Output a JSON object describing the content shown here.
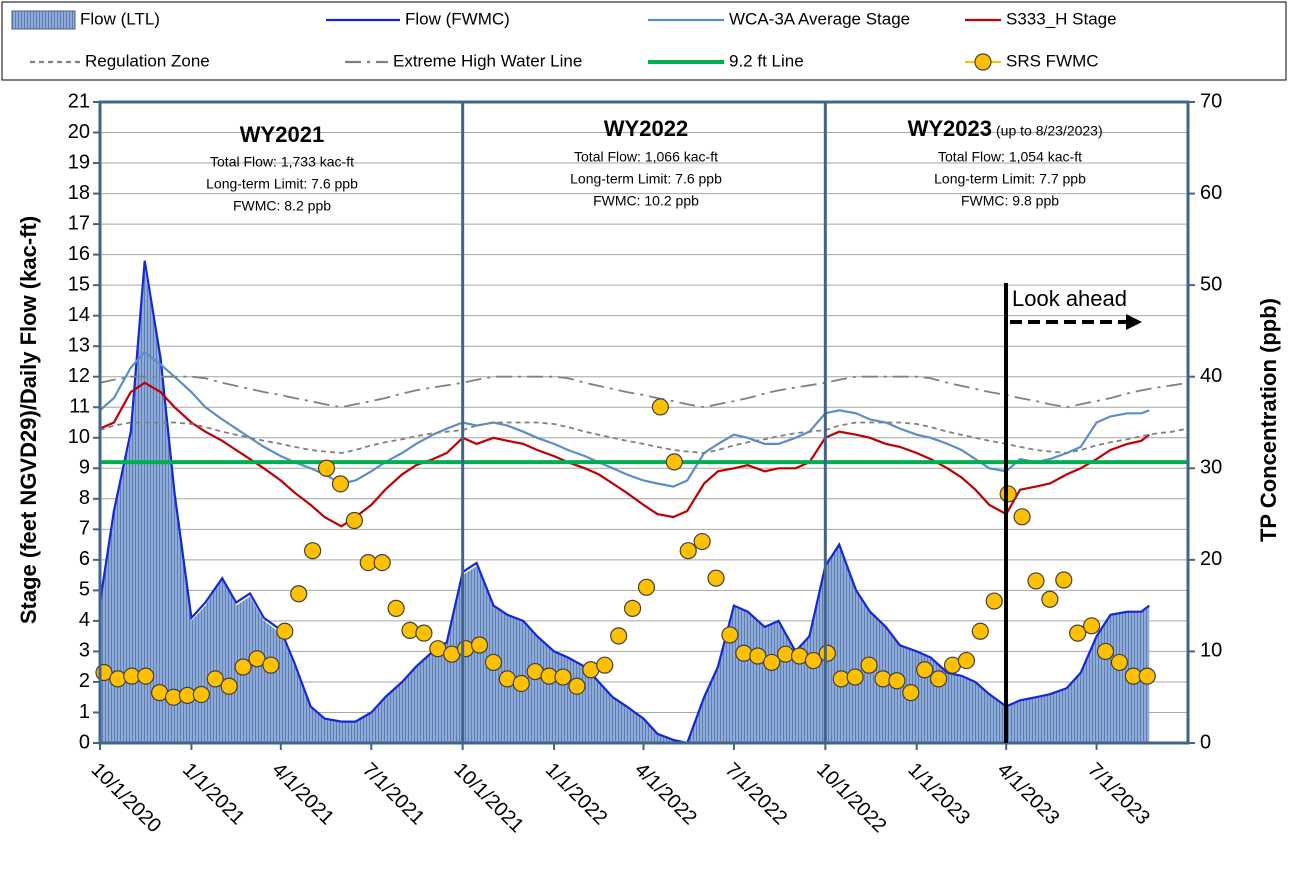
{
  "chart_data": {
    "type": "line",
    "ylabel": "Stage (feet NGVD29)/Daily Flow (kac-ft)",
    "y2label": "TP Concentration (ppb)",
    "xlim": [
      "2020-10-01",
      "2023-10-01"
    ],
    "xticks": [
      {
        "value": "2020-10-01",
        "label": "10/1/2020"
      },
      {
        "value": "2021-01-01",
        "label": "1/1/2021"
      },
      {
        "value": "2021-04-01",
        "label": "4/1/2021"
      },
      {
        "value": "2021-07-01",
        "label": "7/1/2021"
      },
      {
        "value": "2021-10-01",
        "label": "10/1/2021"
      },
      {
        "value": "2022-01-01",
        "label": "1/1/2022"
      },
      {
        "value": "2022-04-01",
        "label": "4/1/2022"
      },
      {
        "value": "2022-07-01",
        "label": "7/1/2022"
      },
      {
        "value": "2022-10-01",
        "label": "10/1/2022"
      },
      {
        "value": "2023-01-01",
        "label": "1/1/2023"
      },
      {
        "value": "2023-04-01",
        "label": "4/1/2023"
      },
      {
        "value": "2023-07-01",
        "label": "7/1/2023"
      }
    ],
    "ylim": [
      0,
      21
    ],
    "yticks": [
      0,
      1,
      2,
      3,
      4,
      5,
      6,
      7,
      8,
      9,
      10,
      11,
      12,
      13,
      14,
      15,
      16,
      17,
      18,
      19,
      20,
      21
    ],
    "y2lim": [
      0,
      70
    ],
    "y2ticks": [
      0,
      10,
      20,
      30,
      40,
      50,
      60,
      70
    ],
    "grid": true,
    "x": [
      "2020-10-01",
      "2020-10-15",
      "2020-11-01",
      "2020-11-15",
      "2020-12-01",
      "2020-12-15",
      "2021-01-01",
      "2021-01-15",
      "2021-02-01",
      "2021-02-15",
      "2021-03-01",
      "2021-03-15",
      "2021-04-01",
      "2021-04-15",
      "2021-05-01",
      "2021-05-15",
      "2021-06-01",
      "2021-06-15",
      "2021-07-01",
      "2021-07-15",
      "2021-08-01",
      "2021-08-15",
      "2021-09-01",
      "2021-09-15",
      "2021-10-01",
      "2021-10-15",
      "2021-11-01",
      "2021-11-15",
      "2021-12-01",
      "2021-12-15",
      "2022-01-01",
      "2022-01-15",
      "2022-02-01",
      "2022-02-15",
      "2022-03-01",
      "2022-03-15",
      "2022-04-01",
      "2022-04-15",
      "2022-05-01",
      "2022-05-15",
      "2022-06-01",
      "2022-06-15",
      "2022-07-01",
      "2022-07-15",
      "2022-08-01",
      "2022-08-15",
      "2022-09-01",
      "2022-09-15",
      "2022-10-01",
      "2022-10-15",
      "2022-11-01",
      "2022-11-15",
      "2022-12-01",
      "2022-12-15",
      "2023-01-01",
      "2023-01-15",
      "2023-02-01",
      "2023-02-15",
      "2023-03-01",
      "2023-03-15",
      "2023-04-01",
      "2023-04-15",
      "2023-05-01",
      "2023-05-15",
      "2023-06-01",
      "2023-06-15",
      "2023-07-01",
      "2023-07-15",
      "2023-08-01",
      "2023-08-15",
      "2023-08-23",
      "2023-09-01",
      "2023-09-15",
      "2023-10-01"
    ],
    "series": [
      {
        "name": "Flow (LTL)",
        "type": "area",
        "color": "#8eaad6",
        "values": [
          4.5,
          7.5,
          10,
          15.5,
          12.5,
          8,
          4,
          4.5,
          5.4,
          4.5,
          4.8,
          4,
          3.6,
          2.5,
          1.2,
          0.8,
          0.7,
          0.7,
          1,
          1.5,
          2,
          2.5,
          3,
          3.3,
          5.5,
          5.8,
          4.5,
          4.2,
          4,
          3.5,
          3,
          2.8,
          2.5,
          2,
          1.5,
          1.2,
          0.8,
          0.3,
          0.1,
          0,
          1.5,
          2.5,
          4.5,
          4.3,
          3.8,
          4,
          3,
          3.5,
          5.8,
          6.5,
          5,
          4.3,
          3.8,
          3.2,
          3,
          2.8,
          2.3,
          2.2,
          2,
          1.6,
          1.2,
          1.4,
          1.5,
          1.6,
          1.8,
          2.3,
          3.5,
          4.2,
          4.3,
          4.3,
          4.5,
          null,
          null,
          null
        ]
      },
      {
        "name": "Flow (FWMC)",
        "type": "line",
        "color": "#1428d8",
        "style": "solid",
        "values": [
          4.6,
          7.6,
          10.2,
          15.8,
          12.6,
          8.2,
          4.1,
          4.6,
          5.4,
          4.6,
          4.9,
          4.1,
          3.7,
          2.6,
          1.2,
          0.8,
          0.7,
          0.7,
          1,
          1.5,
          2,
          2.5,
          3,
          3.3,
          5.6,
          5.9,
          4.5,
          4.2,
          4,
          3.5,
          3,
          2.8,
          2.5,
          2,
          1.5,
          1.2,
          0.8,
          0.3,
          0.1,
          0,
          1.5,
          2.5,
          4.5,
          4.3,
          3.8,
          4,
          3,
          3.5,
          5.8,
          6.5,
          5,
          4.3,
          3.8,
          3.2,
          3,
          2.8,
          2.3,
          2.2,
          2,
          1.6,
          1.2,
          1.4,
          1.5,
          1.6,
          1.8,
          2.3,
          3.5,
          4.2,
          4.3,
          4.3,
          4.5,
          null,
          null,
          null
        ]
      },
      {
        "name": "WCA-3A Average Stage",
        "type": "line",
        "color": "#5b8ec9",
        "style": "solid",
        "values": [
          10.9,
          11.3,
          12.3,
          12.8,
          12.4,
          12,
          11.5,
          11,
          10.6,
          10.3,
          10,
          9.7,
          9.4,
          9.2,
          9,
          8.8,
          8.5,
          8.6,
          8.9,
          9.2,
          9.5,
          9.8,
          10.1,
          10.3,
          10.5,
          10.4,
          10.5,
          10.4,
          10.2,
          10,
          9.8,
          9.6,
          9.4,
          9.2,
          9,
          8.8,
          8.6,
          8.5,
          8.4,
          8.6,
          9.5,
          9.8,
          10.1,
          10,
          9.8,
          9.8,
          10,
          10.2,
          10.8,
          10.9,
          10.8,
          10.6,
          10.5,
          10.3,
          10.1,
          10,
          9.8,
          9.6,
          9.3,
          9,
          8.9,
          9.3,
          9.2,
          9.3,
          9.5,
          9.7,
          10.5,
          10.7,
          10.8,
          10.8,
          10.9,
          null,
          null,
          null
        ]
      },
      {
        "name": "S333_H Stage",
        "type": "line",
        "color": "#c00000",
        "style": "solid",
        "values": [
          10.3,
          10.5,
          11.5,
          11.8,
          11.5,
          11,
          10.5,
          10.2,
          9.9,
          9.6,
          9.3,
          9,
          8.6,
          8.2,
          7.8,
          7.4,
          7.1,
          7.4,
          7.8,
          8.3,
          8.8,
          9.1,
          9.3,
          9.5,
          10,
          9.8,
          10,
          9.9,
          9.8,
          9.6,
          9.4,
          9.2,
          9,
          8.8,
          8.5,
          8.2,
          7.8,
          7.5,
          7.4,
          7.6,
          8.5,
          8.9,
          9,
          9.1,
          8.9,
          9,
          9,
          9.2,
          10,
          10.2,
          10.1,
          10,
          9.8,
          9.7,
          9.5,
          9.3,
          9,
          8.7,
          8.3,
          7.8,
          7.5,
          8.3,
          8.4,
          8.5,
          8.8,
          9,
          9.3,
          9.6,
          9.8,
          9.9,
          10.1,
          null,
          null,
          null
        ]
      },
      {
        "name": "Regulation Zone",
        "type": "line",
        "color": "#808080",
        "style": "dashed",
        "values": [
          10.25,
          10.4,
          10.5,
          10.5,
          10.5,
          10.5,
          10.45,
          10.35,
          10.2,
          10.1,
          10,
          9.9,
          9.8,
          9.7,
          9.6,
          9.55,
          9.5,
          9.6,
          9.75,
          9.85,
          9.95,
          10.05,
          10.15,
          10.2,
          10.25,
          10.4,
          10.5,
          10.5,
          10.5,
          10.5,
          10.45,
          10.35,
          10.2,
          10.1,
          10,
          9.9,
          9.8,
          9.7,
          9.6,
          9.55,
          9.5,
          9.6,
          9.75,
          9.85,
          9.95,
          10.05,
          10.15,
          10.2,
          10.25,
          10.4,
          10.5,
          10.5,
          10.5,
          10.5,
          10.45,
          10.35,
          10.2,
          10.1,
          10,
          9.9,
          9.8,
          9.7,
          9.6,
          9.55,
          9.5,
          9.6,
          9.75,
          9.85,
          9.95,
          10.05,
          10.1,
          10.15,
          10.2,
          10.3
        ]
      },
      {
        "name": "Extreme High Water Line",
        "type": "line",
        "color": "#808080",
        "style": "dashdot",
        "values": [
          11.8,
          11.9,
          12,
          12,
          12,
          12,
          12,
          11.95,
          11.8,
          11.7,
          11.6,
          11.5,
          11.4,
          11.3,
          11.2,
          11.1,
          11,
          11.1,
          11.2,
          11.3,
          11.45,
          11.55,
          11.65,
          11.72,
          11.8,
          11.9,
          12,
          12,
          12,
          12,
          12,
          11.95,
          11.8,
          11.7,
          11.6,
          11.5,
          11.4,
          11.3,
          11.2,
          11.1,
          11,
          11.1,
          11.2,
          11.3,
          11.45,
          11.55,
          11.65,
          11.72,
          11.8,
          11.9,
          12,
          12,
          12,
          12,
          12,
          11.95,
          11.8,
          11.7,
          11.6,
          11.5,
          11.4,
          11.3,
          11.2,
          11.1,
          11,
          11.1,
          11.2,
          11.3,
          11.45,
          11.55,
          11.6,
          11.65,
          11.72,
          11.8
        ]
      },
      {
        "name": "9.2 ft Line",
        "type": "hline",
        "color": "#00b050",
        "value": 9.2
      },
      {
        "name": "SRS FWMC",
        "type": "scatter",
        "axis": "y2",
        "color": "#ffc000",
        "x": [
          "2020-10-05",
          "2020-10-19",
          "2020-11-02",
          "2020-11-16",
          "2020-11-30",
          "2020-12-14",
          "2020-12-28",
          "2021-01-11",
          "2021-01-25",
          "2021-02-08",
          "2021-02-22",
          "2021-03-08",
          "2021-03-22",
          "2021-04-05",
          "2021-04-19",
          "2021-05-03",
          "2021-05-17",
          "2021-05-31",
          "2021-06-14",
          "2021-06-28",
          "2021-07-12",
          "2021-07-26",
          "2021-08-09",
          "2021-08-23",
          "2021-09-06",
          "2021-09-20",
          "2021-10-04",
          "2021-10-18",
          "2021-11-01",
          "2021-11-15",
          "2021-11-29",
          "2021-12-13",
          "2021-12-27",
          "2022-01-10",
          "2022-01-24",
          "2022-02-07",
          "2022-02-21",
          "2022-03-07",
          "2022-03-21",
          "2022-04-04",
          "2022-04-18",
          "2022-05-02",
          "2022-05-16",
          "2022-05-30",
          "2022-06-13",
          "2022-06-27",
          "2022-07-11",
          "2022-07-25",
          "2022-08-08",
          "2022-08-22",
          "2022-09-05",
          "2022-09-19",
          "2022-10-03",
          "2022-10-17",
          "2022-10-31",
          "2022-11-14",
          "2022-11-28",
          "2022-12-12",
          "2022-12-26",
          "2023-01-09",
          "2023-01-23",
          "2023-02-06",
          "2023-02-20",
          "2023-03-06",
          "2023-03-20",
          "2023-04-03",
          "2023-04-17",
          "2023-05-01",
          "2023-05-15",
          "2023-05-29",
          "2023-06-12",
          "2023-06-26",
          "2023-07-10",
          "2023-07-24",
          "2023-08-07",
          "2023-08-21"
        ],
        "values": [
          7.7,
          7,
          7.3,
          7.3,
          5.5,
          5,
          5.2,
          5.3,
          7,
          6.2,
          8.3,
          9.2,
          8.5,
          12.2,
          16.3,
          21,
          30,
          28.3,
          24.3,
          19.7,
          19.7,
          14.7,
          12.3,
          12,
          10.3,
          9.7,
          10.3,
          10.7,
          8.8,
          7,
          6.5,
          7.8,
          7.3,
          7.2,
          6.2,
          8,
          8.5,
          11.7,
          14.7,
          17,
          36.7,
          30.7,
          21,
          22,
          18,
          11.8,
          9.8,
          9.5,
          8.8,
          9.7,
          9.5,
          9,
          9.8,
          7,
          7.2,
          8.5,
          7,
          6.8,
          5.5,
          8,
          7,
          8.5,
          9,
          12.2,
          15.5,
          27.2,
          24.7,
          17.7,
          15.7,
          17.8,
          12,
          12.8,
          10,
          8.8,
          7.3,
          7.3
        ]
      }
    ],
    "annotations": {
      "panels": [
        {
          "title": "WY2021",
          "lines": [
            "Total Flow: 1,733 kac-ft",
            "Long-term Limit: 7.6 ppb",
            "FWMC: 8.2 ppb"
          ]
        },
        {
          "title": "WY2022",
          "lines": [
            "Total Flow: 1,066 kac-ft",
            "Long-term Limit: 7.6 ppb",
            "FWMC: 10.2 ppb"
          ]
        },
        {
          "title": "WY2023",
          "note": "(up to 8/23/2023)",
          "lines": [
            "Total Flow: 1,054 kac-ft",
            "Long-term Limit: 7.7 ppb",
            "FWMC: 9.8 ppb"
          ]
        }
      ],
      "look_ahead": "Look ahead"
    }
  }
}
